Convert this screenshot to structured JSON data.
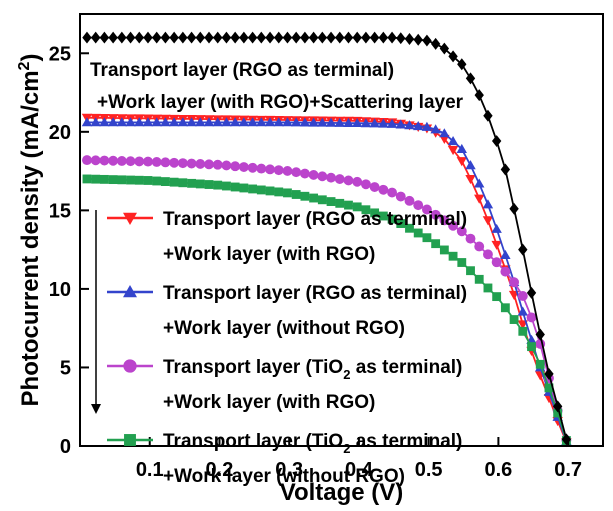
{
  "chart_data": {
    "type": "line",
    "title": "",
    "xlabel": "Voltage (V)",
    "ylabel": "Photocurrent density (mA/cm²)",
    "ylabel_parts": {
      "before": "Photocurrent density (mA/cm",
      "superscript": "2",
      "after": ")"
    },
    "xlim": [
      0.0,
      0.75
    ],
    "ylim": [
      0,
      27.5
    ],
    "x_ticks": [
      0.1,
      0.2,
      0.3,
      0.4,
      0.5,
      0.6,
      0.7
    ],
    "x_tick_labels": [
      "0.1",
      "0.2",
      "0.3",
      "0.4",
      "0.5",
      "0.6",
      "0.7"
    ],
    "y_ticks": [
      0,
      5,
      10,
      15,
      20,
      25
    ],
    "y_tick_labels": [
      "0",
      "5",
      "10",
      "15",
      "20",
      "25"
    ],
    "grid": false,
    "legend_position": "lower-left",
    "annotation": {
      "line1": "Transport layer (RGO as terminal)",
      "line2": "+Work layer (with RGO)+Scattering layer"
    },
    "series": [
      {
        "name_line1": "Transport layer (RGO as terminal)",
        "name_line2": "+Work layer (with RGO)",
        "name_line1_parts": null,
        "color": "#ff2222",
        "marker": "triangle-down",
        "jsc": 20.9,
        "voc": 0.7,
        "vmax": 0.49,
        "ext_volt": 0.7,
        "x": [
          0.01,
          0.1,
          0.2,
          0.3,
          0.4,
          0.45,
          0.5,
          0.52,
          0.55,
          0.58,
          0.6,
          0.62,
          0.64,
          0.66,
          0.68,
          0.69,
          0.7
        ],
        "y": [
          20.9,
          20.85,
          20.8,
          20.75,
          20.7,
          20.6,
          20.2,
          19.7,
          18.0,
          15.0,
          12.5,
          10.0,
          7.0,
          4.5,
          2.2,
          1.0,
          0.0
        ]
      },
      {
        "name_line1": "Transport layer (RGO as terminal)",
        "name_line2": "+Work layer (without RGO)",
        "name_line1_parts": null,
        "color": "#3344cc",
        "marker": "triangle-up",
        "jsc": 20.6,
        "voc": 0.7,
        "vmax": 0.5,
        "x": [
          0.01,
          0.1,
          0.2,
          0.3,
          0.4,
          0.45,
          0.5,
          0.52,
          0.55,
          0.58,
          0.6,
          0.62,
          0.64,
          0.66,
          0.68,
          0.69,
          0.7
        ],
        "y": [
          20.6,
          20.6,
          20.6,
          20.6,
          20.55,
          20.5,
          20.3,
          20.0,
          18.8,
          16.0,
          13.5,
          10.8,
          7.8,
          5.0,
          2.5,
          1.2,
          0.0
        ]
      },
      {
        "name_line1": "Transport layer (TiO2 as terminal)",
        "name_line2": "+Work layer (with RGO)",
        "name_line1_parts": {
          "before": "Transport layer (TiO",
          "subscript": "2",
          "after": " as terminal)"
        },
        "color": "#bb44cc",
        "marker": "circle",
        "jsc": 18.2,
        "voc": 0.7,
        "vmax": 0.42,
        "x": [
          0.01,
          0.1,
          0.2,
          0.3,
          0.4,
          0.45,
          0.5,
          0.55,
          0.6,
          0.62,
          0.64,
          0.66,
          0.68,
          0.69,
          0.7
        ],
        "y": [
          18.2,
          18.1,
          17.9,
          17.5,
          16.8,
          16.1,
          15.0,
          13.6,
          11.6,
          10.6,
          9.2,
          6.5,
          3.0,
          1.5,
          0.0
        ]
      },
      {
        "name_line1": "Transport layer (TiO2 as terminal)",
        "name_line2": "+Work layer (without RGO)",
        "name_line1_parts": {
          "before": "Transport layer (TiO",
          "subscript": "2",
          "after": " as terminal)"
        },
        "color": "#22a050",
        "marker": "square",
        "jsc": 17.0,
        "voc": 0.7,
        "vmax": 0.36,
        "x": [
          0.01,
          0.1,
          0.2,
          0.3,
          0.4,
          0.45,
          0.5,
          0.55,
          0.6,
          0.64,
          0.66,
          0.68,
          0.69,
          0.7
        ],
        "y": [
          17.0,
          16.9,
          16.6,
          16.1,
          15.2,
          14.4,
          13.2,
          11.6,
          9.4,
          7.0,
          5.2,
          2.8,
          1.4,
          0.0
        ]
      },
      {
        "name_line1": "",
        "name_line2": "",
        "name_line1_parts": null,
        "color": "#000000",
        "marker": "diamond",
        "in_legend": false,
        "x": [
          0.01,
          0.1,
          0.2,
          0.3,
          0.4,
          0.45,
          0.5,
          0.52,
          0.55,
          0.57,
          0.59,
          0.61,
          0.63,
          0.65,
          0.67,
          0.69,
          0.7
        ],
        "y": [
          26.0,
          26.0,
          26.0,
          26.0,
          26.0,
          26.0,
          25.8,
          25.4,
          24.2,
          22.6,
          20.5,
          17.6,
          13.6,
          9.2,
          5.0,
          1.7,
          0.0
        ]
      }
    ]
  }
}
